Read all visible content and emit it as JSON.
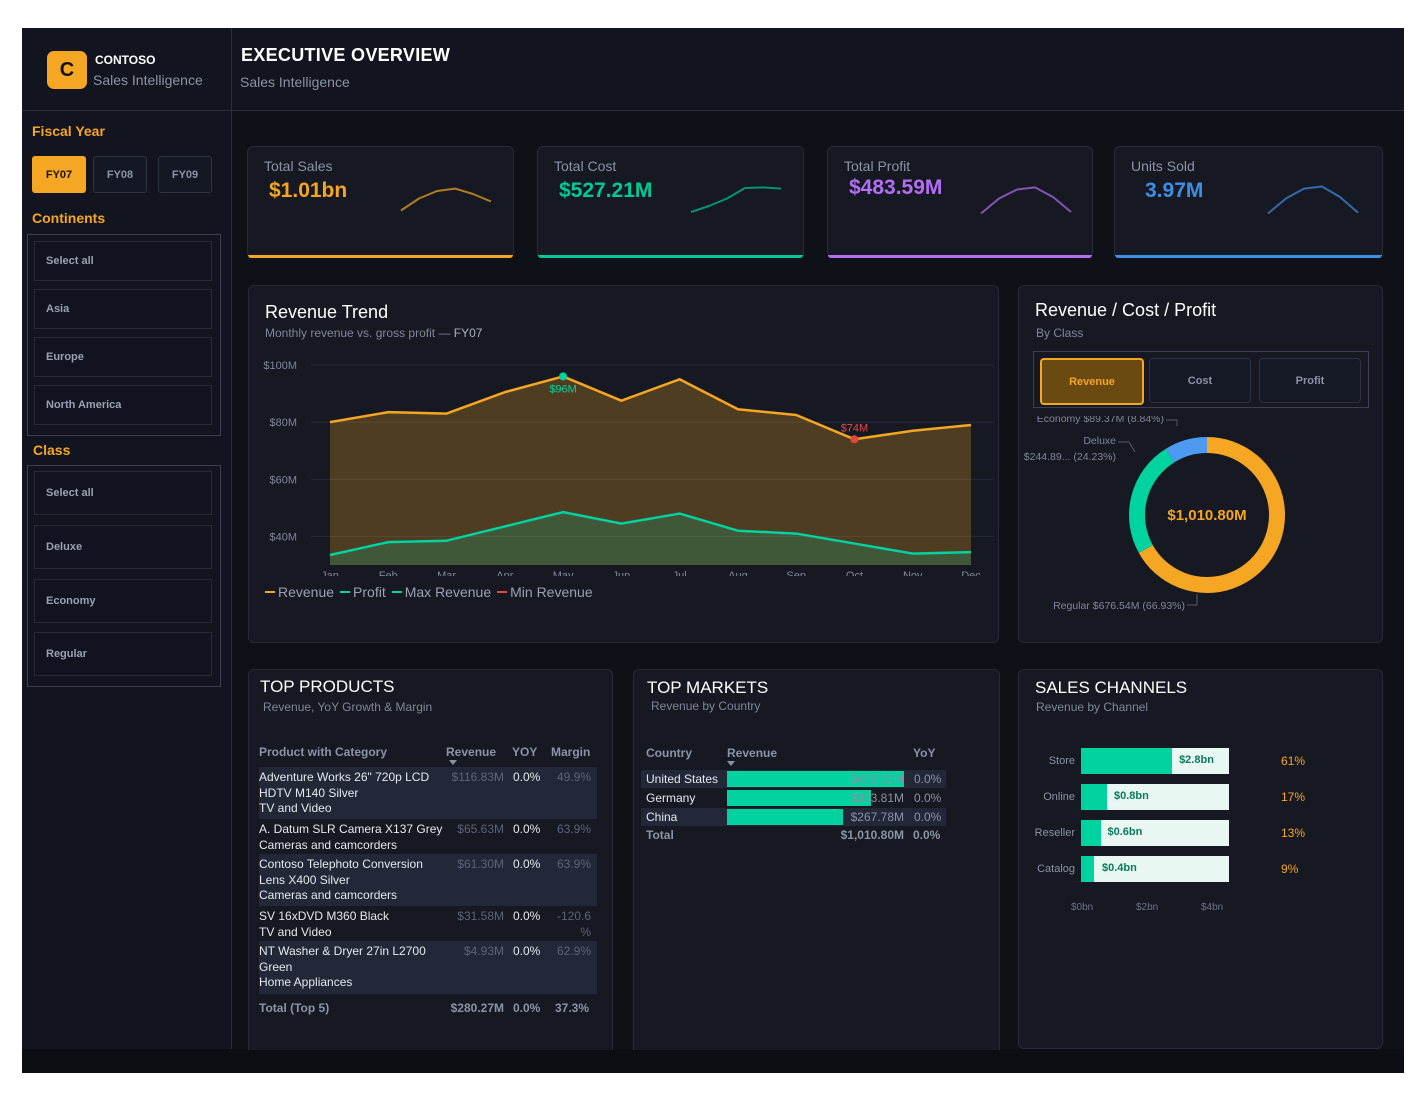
{
  "brand": {
    "logo_letter": "C",
    "name": "CONTOSO",
    "subtitle": "Sales Intelligence"
  },
  "header": {
    "title": "EXECUTIVE OVERVIEW",
    "subtitle": "Sales Intelligence"
  },
  "sidebar": {
    "fiscal_year": {
      "title": "Fiscal Year",
      "options": [
        "FY07",
        "FY08",
        "FY09"
      ],
      "selected": "FY07"
    },
    "continents": {
      "title": "Continents",
      "items": [
        "Select all",
        "Asia",
        "Europe",
        "North America"
      ]
    },
    "class": {
      "title": "Class",
      "items": [
        "Select all",
        "Deluxe",
        "Economy",
        "Regular"
      ]
    }
  },
  "kpis": [
    {
      "label": "Total Sales",
      "value": "$1.01bn",
      "color": "#f5a623",
      "spark": [
        0.15,
        0.55,
        0.8,
        0.88,
        0.7,
        0.45
      ]
    },
    {
      "label": "Total Cost",
      "value": "$527.21M",
      "color": "#00c896",
      "spark": [
        0.1,
        0.3,
        0.55,
        0.9,
        0.92,
        0.88
      ]
    },
    {
      "label": "Total Profit",
      "value": "$483.59M",
      "color": "#b46ef5",
      "spark": [
        0.05,
        0.55,
        0.85,
        0.92,
        0.6,
        0.1
      ]
    },
    {
      "label": "Units Sold",
      "value": "3.97M",
      "color": "#3d8fe6",
      "spark": [
        0.05,
        0.55,
        0.88,
        0.95,
        0.6,
        0.08
      ]
    }
  ],
  "revenue_trend": {
    "title": "Revenue Trend",
    "subtitle": "Monthly revenue vs. gross profit —",
    "subtitle_tag": "FY07",
    "max_label": "$96M",
    "min_label": "$74M",
    "legend": [
      "Revenue",
      "Profit",
      "Max Revenue",
      "Min Revenue"
    ]
  },
  "chart_data": {
    "type": "area",
    "x": [
      "Jan",
      "Feb",
      "Mar",
      "Apr",
      "May",
      "Jun",
      "Jul",
      "Aug",
      "Sep",
      "Oct",
      "Nov",
      "Dec"
    ],
    "series": [
      {
        "name": "Revenue",
        "values": [
          80,
          83.5,
          83,
          90.5,
          96,
          87.5,
          95,
          84.5,
          82.5,
          74,
          77,
          79
        ],
        "color": "#f5a623"
      },
      {
        "name": "Profit",
        "values": [
          33.5,
          38,
          38.5,
          43.5,
          48.5,
          44.5,
          48,
          42,
          41,
          37.5,
          34,
          34.5
        ],
        "color": "#00d2a0"
      }
    ],
    "yticks": [
      "$40M",
      "$60M",
      "$80M",
      "$100M"
    ],
    "ytick_values": [
      40,
      60,
      80,
      100
    ],
    "ylim": [
      30,
      100
    ],
    "grid": true,
    "legend_placement": "bottom-left"
  },
  "rcp": {
    "title": "Revenue / Cost / Profit",
    "subtitle": "By Class",
    "tabs": [
      "Revenue",
      "Cost",
      "Profit"
    ],
    "active_tab": "Revenue",
    "total_label": "$1,010.80M",
    "slices": [
      {
        "name": "Regular",
        "value": 676.54,
        "label": "Regular $676.54M (66.93%)",
        "color": "#f5a623"
      },
      {
        "name": "Deluxe",
        "value": 244.89,
        "label_line1": "Deluxe",
        "label_line2": "$244.89... (24.23%)",
        "color": "#00d2a0"
      },
      {
        "name": "Economy",
        "value": 89.37,
        "label": "Economy $89.37M (8.84%)",
        "color": "#4d9bf0"
      }
    ]
  },
  "top_products": {
    "title": "TOP PRODUCTS",
    "subtitle": "Revenue, YoY Growth & Margin",
    "columns": [
      "Product with Category",
      "Revenue",
      "YOY",
      "Margin"
    ],
    "rows": [
      {
        "lines": [
          "Adventure Works 26\" 720p LCD",
          "HDTV M140 Silver",
          "TV and Video"
        ],
        "revenue": "$116.83M",
        "yoy": "0.0%",
        "margin": "49.9%"
      },
      {
        "lines": [
          "A. Datum SLR Camera X137 Grey",
          "Cameras and camcorders"
        ],
        "revenue": "$65.63M",
        "yoy": "0.0%",
        "margin": "63.9%"
      },
      {
        "lines": [
          "Contoso Telephoto Conversion",
          "Lens X400 Silver",
          "Cameras and camcorders"
        ],
        "revenue": "$61.30M",
        "yoy": "0.0%",
        "margin": "63.9%"
      },
      {
        "lines": [
          "SV 16xDVD M360 Black",
          "TV and Video"
        ],
        "revenue": "$31.58M",
        "yoy": "0.0%",
        "margin": "-120.6 %"
      },
      {
        "lines": [
          "NT Washer & Dryer 27in L2700",
          "Green",
          "Home Appliances"
        ],
        "revenue": "$4.93M",
        "yoy": "0.0%",
        "margin": "62.9%"
      }
    ],
    "total": {
      "label": "Total (Top 5)",
      "revenue": "$280.27M",
      "yoy": "0.0%",
      "margin": "37.3%"
    }
  },
  "top_markets": {
    "title": "TOP MARKETS",
    "subtitle": "Revenue by Country",
    "columns": [
      "Country",
      "Revenue",
      "YoY"
    ],
    "rows": [
      {
        "country": "United States",
        "revenue": "$409.21M",
        "value": 409.21,
        "yoy": "0.0%"
      },
      {
        "country": "Germany",
        "revenue": "$333.81M",
        "value": 333.81,
        "yoy": "0.0%"
      },
      {
        "country": "China",
        "revenue": "$267.78M",
        "value": 267.78,
        "yoy": "0.0%"
      }
    ],
    "total": {
      "label": "Total",
      "revenue": "$1,010.80M",
      "yoy": "0.0%"
    }
  },
  "sales_channels": {
    "title": "SALES CHANNELS",
    "subtitle": "Revenue by Channel",
    "rows": [
      {
        "name": "Store",
        "label": "$2.8bn",
        "value": 2.8,
        "pct": "61%"
      },
      {
        "name": "Online",
        "label": "$0.8bn",
        "value": 0.8,
        "pct": "17%"
      },
      {
        "name": "Reseller",
        "label": "$0.6bn",
        "value": 0.6,
        "pct": "13%"
      },
      {
        "name": "Catalog",
        "label": "$0.4bn",
        "value": 0.4,
        "pct": "9%"
      }
    ],
    "axis": [
      "$0bn",
      "$2bn",
      "$4bn"
    ],
    "axis_max": 4.55
  }
}
